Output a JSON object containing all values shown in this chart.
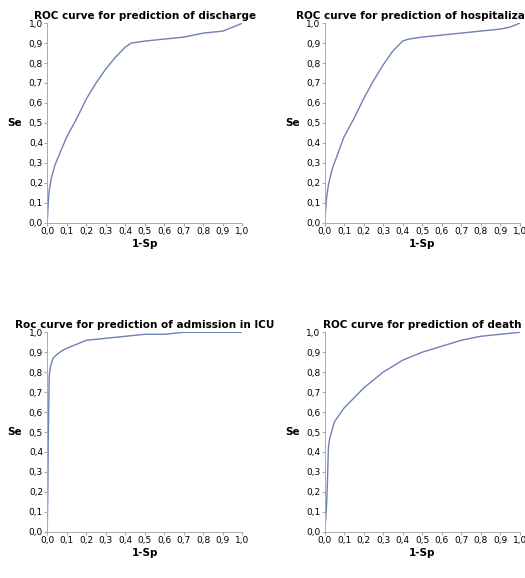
{
  "titles": [
    "ROC curve for prediction of discharge",
    "ROC curve for prediction of hospitalization",
    "Roc curve for prediction of admission in ICU",
    "ROC curve for prediction of death"
  ],
  "xlabel": "1-Sp",
  "ylabel": "Se",
  "line_color": "#7080b8",
  "background_color": "#ffffff",
  "title_fontsize": 7.5,
  "axis_fontsize": 6.5,
  "label_fontsize": 7.5,
  "curves": {
    "discharge": {
      "x": [
        0.0,
        0.005,
        0.01,
        0.02,
        0.04,
        0.07,
        0.1,
        0.15,
        0.2,
        0.25,
        0.3,
        0.35,
        0.4,
        0.43,
        0.5,
        0.6,
        0.7,
        0.8,
        0.9,
        0.95,
        1.0
      ],
      "y": [
        0.0,
        0.1,
        0.16,
        0.22,
        0.29,
        0.36,
        0.43,
        0.52,
        0.62,
        0.7,
        0.77,
        0.83,
        0.88,
        0.9,
        0.91,
        0.92,
        0.93,
        0.95,
        0.96,
        0.98,
        1.0
      ]
    },
    "hospitalization": {
      "x": [
        0.0,
        0.005,
        0.01,
        0.02,
        0.04,
        0.07,
        0.1,
        0.15,
        0.2,
        0.25,
        0.3,
        0.35,
        0.4,
        0.43,
        0.5,
        0.6,
        0.7,
        0.8,
        0.9,
        0.95,
        1.0
      ],
      "y": [
        0.0,
        0.05,
        0.12,
        0.19,
        0.27,
        0.35,
        0.43,
        0.52,
        0.62,
        0.71,
        0.79,
        0.86,
        0.91,
        0.92,
        0.93,
        0.94,
        0.95,
        0.96,
        0.97,
        0.98,
        1.0
      ]
    },
    "icu": {
      "x": [
        0.0,
        0.003,
        0.005,
        0.008,
        0.01,
        0.015,
        0.02,
        0.03,
        0.05,
        0.08,
        0.1,
        0.15,
        0.2,
        0.3,
        0.4,
        0.5,
        0.6,
        0.7,
        0.8,
        0.9,
        1.0
      ],
      "y": [
        0.0,
        0.2,
        0.45,
        0.65,
        0.78,
        0.82,
        0.84,
        0.87,
        0.89,
        0.91,
        0.92,
        0.94,
        0.96,
        0.97,
        0.98,
        0.99,
        0.99,
        1.0,
        1.0,
        1.0,
        1.0
      ]
    },
    "death": {
      "x": [
        0.0,
        0.005,
        0.01,
        0.015,
        0.02,
        0.025,
        0.05,
        0.1,
        0.15,
        0.2,
        0.25,
        0.3,
        0.4,
        0.5,
        0.6,
        0.7,
        0.8,
        0.9,
        1.0
      ],
      "y": [
        0.0,
        0.05,
        0.12,
        0.25,
        0.42,
        0.46,
        0.55,
        0.62,
        0.67,
        0.72,
        0.76,
        0.8,
        0.86,
        0.9,
        0.93,
        0.96,
        0.98,
        0.99,
        1.0
      ]
    }
  },
  "tick_labels": [
    "0,0",
    "0,1",
    "0,2",
    "0,3",
    "0,4",
    "0,5",
    "0,6",
    "0,7",
    "0,8",
    "0,9",
    "1,0"
  ],
  "tick_values": [
    0.0,
    0.1,
    0.2,
    0.3,
    0.4,
    0.5,
    0.6,
    0.7,
    0.8,
    0.9,
    1.0
  ]
}
